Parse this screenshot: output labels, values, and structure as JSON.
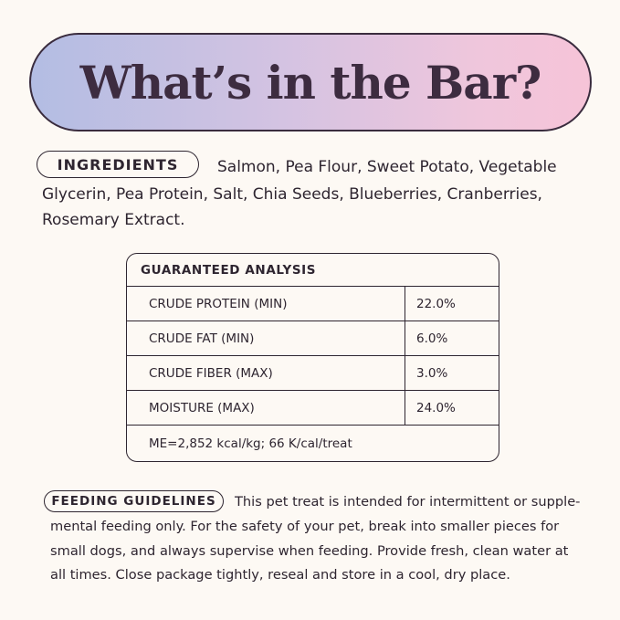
{
  "title": "What’s in the Bar?",
  "ingredients": {
    "label": "INGREDIENTS",
    "lines": [
      "Salmon, Pea Flour, Sweet Potato, Vegetable",
      "Glycerin, Pea Protein, Salt, Chia Seeds, Blueberries, Cranberries,",
      "Rosemary Extract."
    ]
  },
  "analysis": {
    "header": "GUARANTEED ANALYSIS",
    "rows": [
      {
        "label": "CRUDE PROTEIN (MIN)",
        "value": "22.0%"
      },
      {
        "label": "CRUDE FAT (MIN)",
        "value": "6.0%"
      },
      {
        "label": "CRUDE FIBER (MAX)",
        "value": "3.0%"
      },
      {
        "label": "MOISTURE (MAX)",
        "value": "24.0%"
      }
    ],
    "footer": "ME=2,852 kcal/kg; 66 K/cal/treat"
  },
  "feeding": {
    "label": "FEEDING GUIDELINES",
    "lines": [
      "This pet treat is intended for intermittent or supple-",
      "mental feeding only. For the safety of your pet, break into smaller pieces for",
      "small dogs, and always supervise when feeding. Provide fresh, clean water at",
      "all times. Close package tightly, reseal and store in a cool, dry place."
    ]
  },
  "colors": {
    "background": "#fdf9f4",
    "text": "#2e2530",
    "gradient_start": "#b3bde3",
    "gradient_end": "#f6c4d8"
  }
}
